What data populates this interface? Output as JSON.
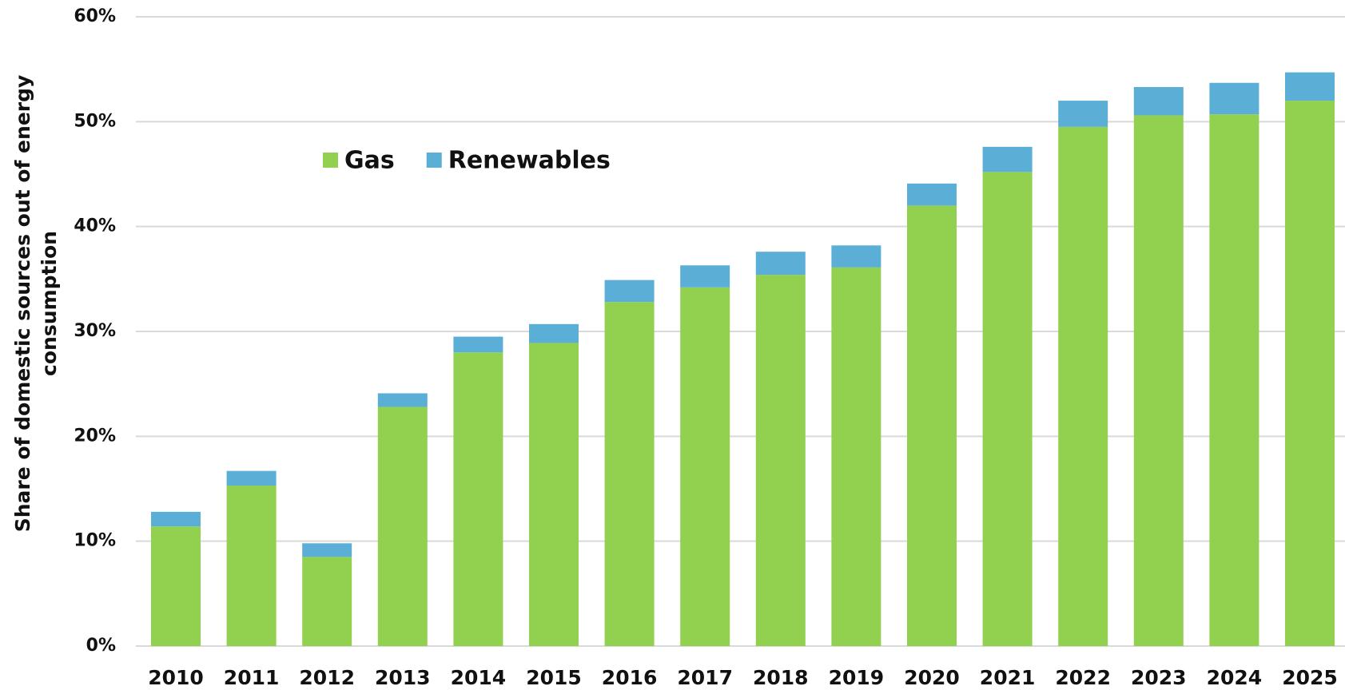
{
  "chart_data": {
    "type": "stacked-bar",
    "ylabel": [
      "Share of domestic sources out of energy",
      "consumption"
    ],
    "categories": [
      "2010",
      "2011",
      "2012",
      "2013",
      "2014",
      "2015",
      "2016",
      "2017",
      "2018",
      "2019",
      "2020",
      "2021",
      "2022",
      "2023",
      "2024",
      "2025"
    ],
    "series": [
      {
        "name": "Gas",
        "color": "#92d050",
        "values": [
          11.4,
          15.3,
          8.5,
          22.8,
          28.0,
          28.9,
          32.8,
          34.2,
          35.4,
          36.1,
          42.0,
          45.2,
          49.5,
          50.6,
          50.7,
          52.0
        ]
      },
      {
        "name": "Renewables",
        "color": "#5bafd6",
        "values": [
          1.4,
          1.4,
          1.3,
          1.3,
          1.5,
          1.8,
          2.1,
          2.1,
          2.2,
          2.1,
          2.1,
          2.4,
          2.5,
          2.7,
          3.0,
          2.7
        ]
      }
    ],
    "ylim": [
      0,
      60
    ],
    "yticks": [
      {
        "value": 0,
        "label": "0%"
      },
      {
        "value": 10,
        "label": "10%"
      },
      {
        "value": 20,
        "label": "20%"
      },
      {
        "value": 30,
        "label": "30%"
      },
      {
        "value": 40,
        "label": "40%"
      },
      {
        "value": 50,
        "label": "50%"
      },
      {
        "value": 60,
        "label": "60%"
      }
    ],
    "grid": true,
    "legend": "top-left"
  }
}
